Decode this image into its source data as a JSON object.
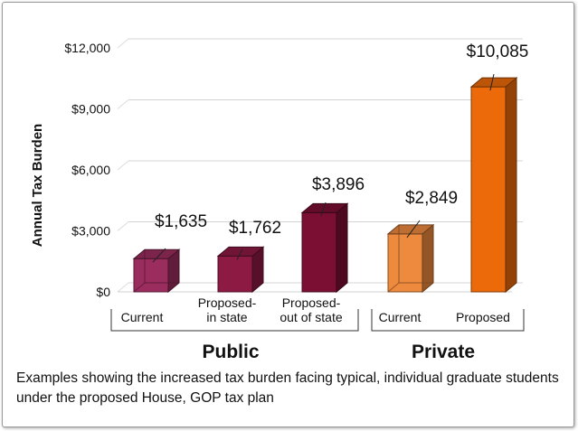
{
  "chart_data": {
    "type": "bar",
    "ylabel": "Annual Tax Burden",
    "ylim": [
      0,
      12000
    ],
    "yticks": [
      "$0",
      "$3,000",
      "$6,000",
      "$9,000",
      "$12,000"
    ],
    "ytick_values": [
      0,
      3000,
      6000,
      9000,
      12000
    ],
    "grid": true,
    "bars": [
      {
        "category": [
          "Current"
        ],
        "value": 1635,
        "label": "$1,635",
        "group": "Public",
        "color": "#9b2d5e"
      },
      {
        "category": [
          "Proposed-",
          "in state"
        ],
        "value": 1762,
        "label": "$1,762",
        "group": "Public",
        "color": "#8c1a42"
      },
      {
        "category": [
          "Proposed-",
          "out of state"
        ],
        "value": 3896,
        "label": "$3,896",
        "group": "Public",
        "color": "#7a0f33"
      },
      {
        "category": [
          "Current"
        ],
        "value": 2849,
        "label": "$2,849",
        "group": "Private",
        "color": "#ee8a3e"
      },
      {
        "category": [
          "Proposed"
        ],
        "value": 10085,
        "label": "$10,085",
        "group": "Private",
        "color": "#ec6a0a"
      }
    ],
    "groups": [
      "Public",
      "Private"
    ]
  },
  "caption": "Examples showing the increased tax burden facing typical, individual graduate students under the proposed House, GOP tax plan"
}
